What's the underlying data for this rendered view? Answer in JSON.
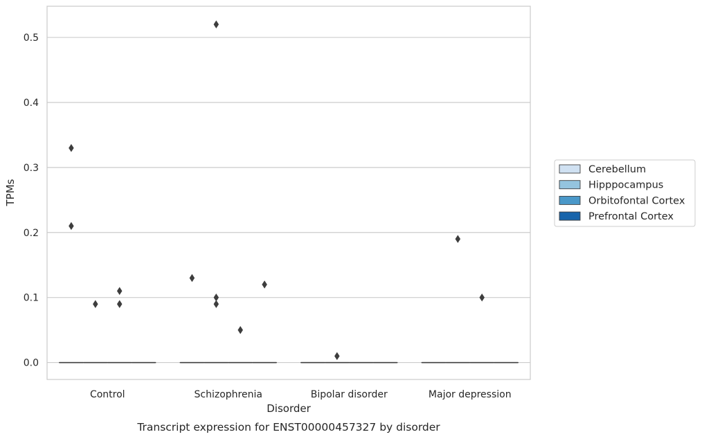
{
  "chart_data": {
    "type": "box",
    "caption": "Transcript expression for ENST00000457327 by disorder",
    "xlabel": "Disorder",
    "ylabel": "TPMs",
    "ylim": [
      -0.026,
      0.548
    ],
    "yticks": [
      0.0,
      0.1,
      0.2,
      0.3,
      0.4,
      0.5
    ],
    "ytick_labels": [
      "0.0",
      "0.1",
      "0.2",
      "0.3",
      "0.4",
      "0.5"
    ],
    "grid": true,
    "legend_position": "right",
    "categories": [
      "Control",
      "Schizophrenia",
      "Bipolar disorder",
      "Major depression"
    ],
    "series": [
      {
        "name": "Cerebellum",
        "color": "#d0e1f2"
      },
      {
        "name": "Hipppocampus",
        "color": "#94c4df"
      },
      {
        "name": "Orbitofontal Cortex",
        "color": "#4a98c9"
      },
      {
        "name": "Prefrontal Cortex",
        "color": "#1764ab"
      }
    ],
    "boxes": [
      {
        "category": "Control",
        "series": "Cerebellum",
        "q1": 0,
        "median": 0,
        "q3": 0,
        "outliers": [
          0.33,
          0.21
        ]
      },
      {
        "category": "Control",
        "series": "Hipppocampus",
        "q1": 0,
        "median": 0,
        "q3": 0,
        "outliers": [
          0.09
        ]
      },
      {
        "category": "Control",
        "series": "Orbitofontal Cortex",
        "q1": 0,
        "median": 0,
        "q3": 0,
        "outliers": [
          0.11,
          0.09
        ]
      },
      {
        "category": "Control",
        "series": "Prefrontal Cortex",
        "q1": 0,
        "median": 0,
        "q3": 0,
        "outliers": []
      },
      {
        "category": "Schizophrenia",
        "series": "Cerebellum",
        "q1": 0,
        "median": 0,
        "q3": 0,
        "outliers": [
          0.13
        ]
      },
      {
        "category": "Schizophrenia",
        "series": "Hipppocampus",
        "q1": 0,
        "median": 0,
        "q3": 0,
        "outliers": [
          0.52,
          0.1,
          0.09
        ]
      },
      {
        "category": "Schizophrenia",
        "series": "Orbitofontal Cortex",
        "q1": 0,
        "median": 0,
        "q3": 0,
        "outliers": [
          0.05
        ]
      },
      {
        "category": "Schizophrenia",
        "series": "Prefrontal Cortex",
        "q1": 0,
        "median": 0,
        "q3": 0,
        "outliers": [
          0.12
        ]
      },
      {
        "category": "Bipolar disorder",
        "series": "Cerebellum",
        "q1": 0,
        "median": 0,
        "q3": 0,
        "outliers": []
      },
      {
        "category": "Bipolar disorder",
        "series": "Hipppocampus",
        "q1": 0,
        "median": 0,
        "q3": 0,
        "outliers": [
          0.01
        ]
      },
      {
        "category": "Bipolar disorder",
        "series": "Orbitofontal Cortex",
        "q1": 0,
        "median": 0,
        "q3": 0,
        "outliers": []
      },
      {
        "category": "Bipolar disorder",
        "series": "Prefrontal Cortex",
        "q1": 0,
        "median": 0,
        "q3": 0,
        "outliers": []
      },
      {
        "category": "Major depression",
        "series": "Cerebellum",
        "q1": 0,
        "median": 0,
        "q3": 0,
        "outliers": []
      },
      {
        "category": "Major depression",
        "series": "Hipppocampus",
        "q1": 0,
        "median": 0,
        "q3": 0,
        "outliers": [
          0.19
        ]
      },
      {
        "category": "Major depression",
        "series": "Orbitofontal Cortex",
        "q1": 0,
        "median": 0,
        "q3": 0,
        "outliers": [
          0.1
        ]
      },
      {
        "category": "Major depression",
        "series": "Prefrontal Cortex",
        "q1": 0,
        "median": 0,
        "q3": 0,
        "outliers": []
      }
    ]
  }
}
